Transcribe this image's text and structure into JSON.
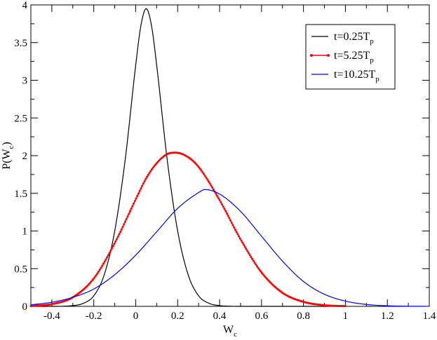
{
  "chart_data": {
    "type": "line",
    "title": "",
    "xlabel": {
      "main": "W",
      "sub": "c"
    },
    "ylabel": {
      "main": "P(W",
      "sub": "c",
      "end": ")"
    },
    "xlim": [
      -0.5,
      1.4
    ],
    "ylim": [
      0,
      4
    ],
    "xticks": [
      -0.4,
      -0.2,
      0,
      0.2,
      0.4,
      0.6,
      0.8,
      1,
      1.2,
      1.4
    ],
    "xtick_labels": [
      "-0.4",
      "-0.2",
      "0",
      "0.2",
      "0.4",
      "0.6",
      "0.8",
      "1",
      "1.2",
      "1.4"
    ],
    "yticks": [
      0,
      0.5,
      1,
      1.5,
      2,
      2.5,
      3,
      3.5,
      4
    ],
    "ytick_labels": [
      "0",
      "0.5",
      "1",
      "1.5",
      "2",
      "2.5",
      "3",
      "3.5",
      "4"
    ],
    "grid": false,
    "legend_position": "top-right",
    "series": [
      {
        "name": {
          "main": "t=0.25T",
          "sub": "p"
        },
        "color": "#000000",
        "marker": "none",
        "x": [
          -0.5,
          -0.4,
          -0.3,
          -0.25,
          -0.2,
          -0.15,
          -0.1,
          -0.05,
          0,
          0.025,
          0.05,
          0.075,
          0.1,
          0.15,
          0.2,
          0.25,
          0.3,
          0.35,
          0.4,
          0.45,
          0.5,
          0.6,
          1.0
        ],
        "y": [
          0,
          0,
          0.01,
          0.04,
          0.14,
          0.42,
          1.0,
          1.95,
          3.2,
          3.73,
          3.95,
          3.73,
          3.2,
          1.95,
          1.0,
          0.42,
          0.14,
          0.04,
          0.01,
          0.002,
          0,
          0,
          0
        ]
      },
      {
        "name": {
          "main": "t=5.25T",
          "sub": "p"
        },
        "color": "#ff0000",
        "marker": "dot",
        "x": [
          -0.5,
          -0.4,
          -0.3,
          -0.2,
          -0.1,
          0,
          0.05,
          0.1,
          0.15,
          0.19,
          0.25,
          0.3,
          0.4,
          0.5,
          0.6,
          0.7,
          0.8,
          0.9,
          1.0
        ],
        "y": [
          0.005,
          0.03,
          0.12,
          0.37,
          0.84,
          1.42,
          1.7,
          1.9,
          2.02,
          2.04,
          1.98,
          1.85,
          1.41,
          0.89,
          0.45,
          0.18,
          0.06,
          0.015,
          0.003
        ]
      },
      {
        "name": {
          "main": "t=10.25T",
          "sub": "p"
        },
        "color": "#0000ff",
        "marker": "none",
        "x": [
          -0.5,
          -0.4,
          -0.3,
          -0.2,
          -0.1,
          0,
          0.1,
          0.2,
          0.3,
          0.33,
          0.4,
          0.5,
          0.6,
          0.7,
          0.8,
          0.9,
          1.0,
          1.1,
          1.2,
          1.3,
          1.4
        ],
        "y": [
          0.02,
          0.055,
          0.12,
          0.23,
          0.42,
          0.68,
          0.99,
          1.3,
          1.51,
          1.55,
          1.49,
          1.26,
          0.93,
          0.6,
          0.33,
          0.16,
          0.07,
          0.025,
          0.008,
          0.002,
          0.0005
        ]
      }
    ]
  }
}
